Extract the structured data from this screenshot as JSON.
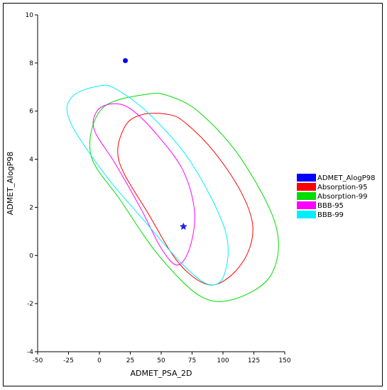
{
  "chart_data": {
    "type": "scatter",
    "xlabel": "ADMET_PSA_2D",
    "ylabel": "ADMET_AlogP98",
    "xlim": [
      -50,
      150
    ],
    "ylim": [
      -4,
      10
    ],
    "x_ticks": [
      "-50",
      "-25",
      "0",
      "25",
      "50",
      "75",
      "100",
      "125",
      "150"
    ],
    "y_ticks": [
      "-4",
      "-2",
      "0",
      "2",
      "4",
      "6",
      "8",
      "10"
    ],
    "grid": false,
    "legend_position": "right",
    "points": [
      {
        "series": "ADMET_AlogP98",
        "x": 21,
        "y": 8.1,
        "marker": "circle"
      },
      {
        "series": "ADMET_AlogP98",
        "x": 68,
        "y": 1.2,
        "marker": "star"
      }
    ],
    "ellipses": [
      {
        "name": "Absorption-95",
        "color": "#ff0000",
        "cx": 61,
        "cy": 2.3,
        "semi_axis_a": 1,
        "semi_axis_b": 1,
        "polygon": [
          [
            57,
            5.85
          ],
          [
            71,
            5.45
          ],
          [
            93,
            4.3
          ],
          [
            114,
            2.7
          ],
          [
            124,
            1.3
          ],
          [
            120,
            0.1
          ],
          [
            105,
            -0.9
          ],
          [
            87,
            -1.2
          ],
          [
            64,
            -0.3
          ],
          [
            40,
            1.7
          ],
          [
            16,
            3.9
          ],
          [
            20,
            5.3
          ],
          [
            34,
            5.85
          ]
        ]
      },
      {
        "name": "Absorption-99",
        "color": "#00dd00",
        "cx": 62,
        "cy": 2.2,
        "polygon": [
          [
            38,
            6.7
          ],
          [
            58,
            6.6
          ],
          [
            82,
            5.9
          ],
          [
            115,
            4.0
          ],
          [
            143,
            1.2
          ],
          [
            139,
            -0.8
          ],
          [
            110,
            -1.8
          ],
          [
            82,
            -1.7
          ],
          [
            48,
            0.0
          ],
          [
            17,
            2.3
          ],
          [
            -7,
            4.2
          ],
          [
            2,
            6.1
          ]
        ]
      },
      {
        "name": "BBB-95",
        "color": "#ff00ff",
        "cx": 47,
        "cy": 2.9,
        "polygon": [
          [
            10,
            6.3
          ],
          [
            25,
            6.1
          ],
          [
            47,
            5.0
          ],
          [
            68,
            3.5
          ],
          [
            77,
            1.8
          ],
          [
            73,
            0.3
          ],
          [
            63,
            -0.4
          ],
          [
            50,
            0.3
          ],
          [
            34,
            1.9
          ],
          [
            13,
            3.8
          ],
          [
            -4,
            5.2
          ],
          [
            -2,
            6.0
          ]
        ]
      },
      {
        "name": "BBB-99",
        "color": "#00eeff",
        "cx": 49,
        "cy": 3.0,
        "polygon": [
          [
            0,
            7.05
          ],
          [
            14,
            6.9
          ],
          [
            42,
            5.8
          ],
          [
            75,
            3.8
          ],
          [
            102,
            1.0
          ],
          [
            101,
            -0.8
          ],
          [
            88,
            -1.2
          ],
          [
            66,
            -0.3
          ],
          [
            37,
            1.4
          ],
          [
            4,
            3.4
          ],
          [
            -24,
            5.6
          ],
          [
            -22,
            6.6
          ]
        ]
      }
    ],
    "legend": [
      {
        "label": "ADMET_AlogP98",
        "color": "#0000ff"
      },
      {
        "label": "Absorption-95",
        "color": "#ff0000"
      },
      {
        "label": "Absorption-99",
        "color": "#00dd00"
      },
      {
        "label": "BBB-95",
        "color": "#ff00ff"
      },
      {
        "label": "BBB-99",
        "color": "#00eeff"
      }
    ]
  }
}
